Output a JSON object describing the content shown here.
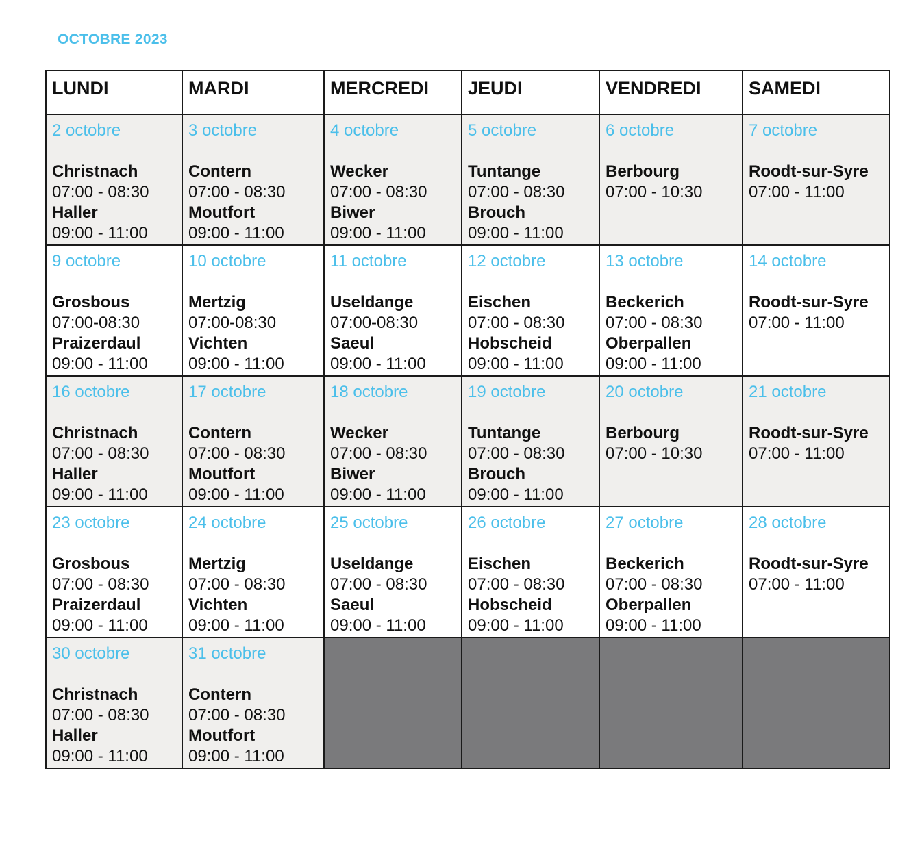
{
  "title": "OCTOBRE 2023",
  "days": [
    "LUNDI",
    "MARDI",
    "MERCREDI",
    "JEUDI",
    "VENDREDI",
    "SAMEDI"
  ],
  "weeks": [
    [
      {
        "date": "2 octobre",
        "stops": [
          {
            "place": "Christnach",
            "time": "07:00 - 08:30"
          },
          {
            "place": "Haller",
            "time": "09:00 - 11:00"
          }
        ]
      },
      {
        "date": "3 octobre",
        "stops": [
          {
            "place": "Contern",
            "time": "07:00 - 08:30"
          },
          {
            "place": "Moutfort",
            "time": "09:00 - 11:00"
          }
        ]
      },
      {
        "date": "4 octobre",
        "stops": [
          {
            "place": "Wecker",
            "time": "07:00 - 08:30"
          },
          {
            "place": "Biwer",
            "time": "09:00 - 11:00"
          }
        ]
      },
      {
        "date": "5 octobre",
        "stops": [
          {
            "place": "Tuntange",
            "time": "07:00 - 08:30"
          },
          {
            "place": "Brouch",
            "time": "09:00 - 11:00"
          }
        ]
      },
      {
        "date": "6 octobre",
        "stops": [
          {
            "place": "Berbourg",
            "time": "07:00 - 10:30"
          }
        ]
      },
      {
        "date": "7 octobre",
        "stops": [
          {
            "place": "Roodt-sur-Syre",
            "time": "07:00 - 11:00"
          }
        ]
      }
    ],
    [
      {
        "date": "9 octobre",
        "stops": [
          {
            "place": "Grosbous",
            "time": "07:00-08:30"
          },
          {
            "place": "Praizerdaul",
            "time": "09:00 - 11:00"
          }
        ]
      },
      {
        "date": "10 octobre",
        "stops": [
          {
            "place": "Mertzig",
            "time": "07:00-08:30"
          },
          {
            "place": "Vichten",
            "time": "09:00 - 11:00"
          }
        ]
      },
      {
        "date": "11 octobre",
        "stops": [
          {
            "place": "Useldange",
            "time": "07:00-08:30"
          },
          {
            "place": "Saeul",
            "time": "09:00 - 11:00"
          }
        ]
      },
      {
        "date": "12 octobre",
        "stops": [
          {
            "place": "Eischen",
            "time": "07:00 - 08:30"
          },
          {
            "place": "Hobscheid",
            "time": "09:00 - 11:00"
          }
        ]
      },
      {
        "date": "13 octobre",
        "stops": [
          {
            "place": "Beckerich",
            "time": "07:00 - 08:30"
          },
          {
            "place": "Oberpallen",
            "time": "09:00 - 11:00"
          }
        ]
      },
      {
        "date": "14 octobre",
        "stops": [
          {
            "place": "Roodt-sur-Syre",
            "time": "07:00 - 11:00"
          }
        ]
      }
    ],
    [
      {
        "date": "16 octobre",
        "stops": [
          {
            "place": "Christnach",
            "time": "07:00 - 08:30"
          },
          {
            "place": "Haller",
            "time": "09:00 - 11:00"
          }
        ]
      },
      {
        "date": "17 octobre",
        "stops": [
          {
            "place": "Contern",
            "time": "07:00 - 08:30"
          },
          {
            "place": "Moutfort",
            "time": "09:00 - 11:00"
          }
        ]
      },
      {
        "date": "18 octobre",
        "stops": [
          {
            "place": "Wecker",
            "time": "07:00 - 08:30"
          },
          {
            "place": "Biwer",
            "time": "09:00 - 11:00"
          }
        ]
      },
      {
        "date": "19 octobre",
        "stops": [
          {
            "place": "Tuntange",
            "time": "07:00 - 08:30"
          },
          {
            "place": "Brouch",
            "time": "09:00 - 11:00"
          }
        ]
      },
      {
        "date": "20 octobre",
        "stops": [
          {
            "place": "Berbourg",
            "time": "07:00 - 10:30"
          }
        ]
      },
      {
        "date": "21 octobre",
        "stops": [
          {
            "place": "Roodt-sur-Syre",
            "time": "07:00 - 11:00"
          }
        ]
      }
    ],
    [
      {
        "date": "23 octobre",
        "stops": [
          {
            "place": "Grosbous",
            "time": "07:00 - 08:30"
          },
          {
            "place": "Praizerdaul",
            "time": "09:00 - 11:00"
          }
        ]
      },
      {
        "date": "24 octobre",
        "stops": [
          {
            "place": "Mertzig",
            "time": "07:00 - 08:30"
          },
          {
            "place": "Vichten",
            "time": "09:00 - 11:00"
          }
        ]
      },
      {
        "date": "25 octobre",
        "stops": [
          {
            "place": "Useldange",
            "time": "07:00 - 08:30"
          },
          {
            "place": "Saeul",
            "time": "09:00 - 11:00"
          }
        ]
      },
      {
        "date": "26 octobre",
        "stops": [
          {
            "place": "Eischen",
            "time": "07:00 - 08:30"
          },
          {
            "place": "Hobscheid",
            "time": "09:00 - 11:00"
          }
        ]
      },
      {
        "date": "27 octobre",
        "stops": [
          {
            "place": "Beckerich",
            "time": "07:00 - 08:30"
          },
          {
            "place": "Oberpallen",
            "time": "09:00 - 11:00"
          }
        ]
      },
      {
        "date": "28 octobre",
        "stops": [
          {
            "place": "Roodt-sur-Syre",
            "time": "07:00 - 11:00"
          }
        ]
      }
    ],
    [
      {
        "date": "30 octobre",
        "stops": [
          {
            "place": "Christnach",
            "time": "07:00 - 08:30"
          },
          {
            "place": "Haller",
            "time": "09:00 - 11:00"
          }
        ]
      },
      {
        "date": "31 octobre",
        "stops": [
          {
            "place": "Contern",
            "time": "07:00 - 08:30"
          },
          {
            "place": "Moutfort",
            "time": "09:00 - 11:00"
          }
        ]
      },
      null,
      null,
      null,
      null
    ]
  ],
  "colors": {
    "accent": "#4bbfea",
    "shade": "#f0efed",
    "empty": "#7a7a7c",
    "border": "#1a1a1a"
  }
}
